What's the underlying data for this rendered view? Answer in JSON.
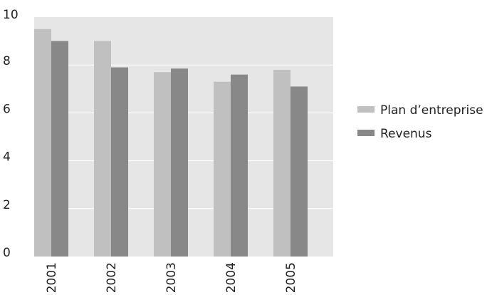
{
  "chart_data": {
    "type": "bar",
    "categories": [
      "2001",
      "2002",
      "2003",
      "2004",
      "2005"
    ],
    "series": [
      {
        "name": "Plan d’entreprise",
        "values": [
          9.5,
          9.0,
          7.7,
          7.3,
          7.8
        ],
        "color": "#c0c0c0"
      },
      {
        "name": "Revenus",
        "values": [
          9.0,
          7.9,
          7.85,
          7.6,
          7.1
        ],
        "color": "#888888"
      }
    ],
    "ylim": [
      0,
      10
    ],
    "yticks": [
      "0",
      "2",
      "4",
      "6",
      "8",
      "10"
    ],
    "grid": true,
    "legend_position": "right",
    "plot_background": "#e6e6e6",
    "gridline_color": "#ffffff"
  }
}
